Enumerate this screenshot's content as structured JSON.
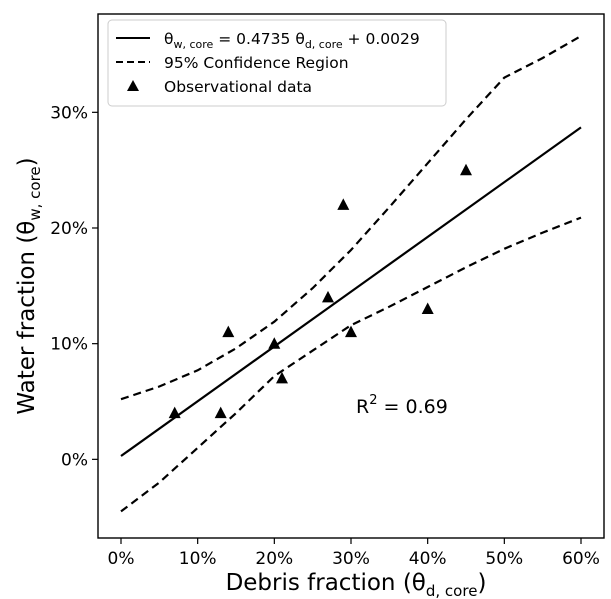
{
  "chart_data": {
    "type": "scatter",
    "title": "",
    "xlabel": {
      "main": "Debris fraction (θ",
      "sub": "d, core",
      "close": ")"
    },
    "ylabel": {
      "main": "Water fraction (θ",
      "sub": "w, core",
      "close": ")"
    },
    "xlim": [
      -0.03,
      0.63
    ],
    "ylim": [
      -0.068,
      0.385
    ],
    "x_ticks": [
      0,
      0.1,
      0.2,
      0.3,
      0.4,
      0.5,
      0.6
    ],
    "x_tick_labels": [
      "0%",
      "10%",
      "20%",
      "30%",
      "40%",
      "50%",
      "60%"
    ],
    "y_ticks": [
      0,
      0.1,
      0.2,
      0.3
    ],
    "y_tick_labels": [
      "0%",
      "10%",
      "20%",
      "30%"
    ],
    "grid": false,
    "legend_position": "top-left",
    "series": [
      {
        "name": "Observational data",
        "marker": "triangle",
        "color": "#000000",
        "points": [
          {
            "x": 0.07,
            "y": 0.04
          },
          {
            "x": 0.13,
            "y": 0.04
          },
          {
            "x": 0.14,
            "y": 0.11
          },
          {
            "x": 0.2,
            "y": 0.1
          },
          {
            "x": 0.21,
            "y": 0.07
          },
          {
            "x": 0.27,
            "y": 0.14
          },
          {
            "x": 0.29,
            "y": 0.22
          },
          {
            "x": 0.3,
            "y": 0.11
          },
          {
            "x": 0.4,
            "y": 0.13
          },
          {
            "x": 0.45,
            "y": 0.25
          }
        ]
      },
      {
        "name_parts": {
          "a": "θ",
          "a_sub": "w, core",
          "b": " = 0.4735 θ",
          "b_sub": "d, core",
          "c": " + 0.0029"
        },
        "style": "solid",
        "color": "#000000",
        "points": [
          {
            "x": 0.0,
            "y": 0.0029
          },
          {
            "x": 0.6,
            "y": 0.287
          }
        ]
      },
      {
        "name": "95% Confidence Region",
        "style": "dashed",
        "color": "#000000",
        "upper": [
          {
            "x": 0.0,
            "y": 0.052
          },
          {
            "x": 0.05,
            "y": 0.063
          },
          {
            "x": 0.1,
            "y": 0.077
          },
          {
            "x": 0.15,
            "y": 0.096
          },
          {
            "x": 0.2,
            "y": 0.119
          },
          {
            "x": 0.25,
            "y": 0.148
          },
          {
            "x": 0.3,
            "y": 0.181
          },
          {
            "x": 0.35,
            "y": 0.218
          },
          {
            "x": 0.4,
            "y": 0.256
          },
          {
            "x": 0.45,
            "y": 0.294
          },
          {
            "x": 0.5,
            "y": 0.33
          },
          {
            "x": 0.55,
            "y": 0.347
          },
          {
            "x": 0.6,
            "y": 0.366
          }
        ],
        "lower": [
          {
            "x": 0.0,
            "y": -0.045
          },
          {
            "x": 0.05,
            "y": -0.02
          },
          {
            "x": 0.1,
            "y": 0.01
          },
          {
            "x": 0.15,
            "y": 0.04
          },
          {
            "x": 0.2,
            "y": 0.072
          },
          {
            "x": 0.25,
            "y": 0.094
          },
          {
            "x": 0.3,
            "y": 0.116
          },
          {
            "x": 0.35,
            "y": 0.132
          },
          {
            "x": 0.4,
            "y": 0.149
          },
          {
            "x": 0.45,
            "y": 0.166
          },
          {
            "x": 0.5,
            "y": 0.182
          },
          {
            "x": 0.55,
            "y": 0.196
          },
          {
            "x": 0.6,
            "y": 0.209
          }
        ]
      }
    ],
    "annotations": [
      {
        "text": "R",
        "sup": "2",
        "rest": " = 0.69",
        "x": 0.31,
        "y": 0.046
      }
    ]
  }
}
